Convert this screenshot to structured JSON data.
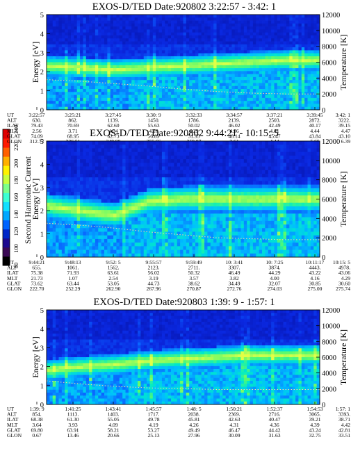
{
  "colorbar": {
    "label": "Second Harmonic Current",
    "ticks": [
      "80",
      "100",
      "120",
      "140",
      "160",
      "180",
      "200",
      "220",
      "240"
    ],
    "colors": [
      "#000000",
      "#3b0a55",
      "#1d0a8f",
      "#0026c8",
      "#0063ff",
      "#00a8ff",
      "#10e0ff",
      "#3cffd4",
      "#7cff8a",
      "#c8ff3c",
      "#fff200",
      "#ffb000",
      "#ff6000",
      "#ff1a00",
      "#e00000"
    ]
  },
  "chart_data": [
    {
      "type": "heatmap",
      "title": "EXOS-D/TED   Date:920802  3:22:57 - 3:42: 1",
      "ylabel": "Energy [eV]",
      "y2label": "Temperature [K]",
      "ylim": [
        0,
        5
      ],
      "y2lim": [
        0,
        12000
      ],
      "yticks": [
        "0",
        "1",
        "2",
        "3",
        "4",
        "5"
      ],
      "y2ticks": [
        "0",
        "2000",
        "4000",
        "6000",
        "8000",
        "10000",
        "12000"
      ],
      "band_energy_eV": [
        2.3,
        2.2,
        2.1,
        2.2,
        2.3,
        2.4,
        2.5,
        2.6,
        2.6
      ],
      "temperature_K": [
        3800,
        3600,
        3300,
        3000,
        2600,
        2300,
        2100,
        2000,
        2000
      ],
      "table": {
        "labels": [
          "UT",
          "ALT",
          "ILAT",
          "MLT",
          "GLAT",
          "GLON"
        ],
        "columns": [
          [
            "3:22:57",
            "630.",
            "79.43",
            "2.56",
            "74.09",
            "312.77"
          ],
          [
            "3:25:21",
            "862.",
            "70.69",
            "3.71",
            "68.95",
            "336.51"
          ],
          [
            "3:27:45",
            "1139.",
            "62.60",
            "4.04",
            "62.73",
            "348.80"
          ],
          [
            "3:30: 9",
            "1450.",
            "55.63",
            "4.20",
            "56.89",
            "355.66"
          ],
          [
            "3:32:33",
            "1786.",
            "50.02",
            "4.29",
            "51.95",
            "359.87"
          ],
          [
            "3:34:57",
            "2139.",
            "46.02",
            "4.36",
            "48.14",
            "2.61"
          ],
          [
            "3:37:21",
            "2503.",
            "42.49",
            "4.41",
            "45.47",
            "4.44"
          ],
          [
            "3:39:45",
            "2872.",
            "40.17",
            "4.44",
            "43.84",
            "5.65"
          ],
          [
            "3:42: 1",
            "3222.",
            "39.15",
            "4.47",
            "43.10",
            "6.39"
          ]
        ]
      }
    },
    {
      "type": "heatmap",
      "title": "EXOS-D/TED   Date:920802  9:44:21 - 10:15: 5",
      "ylabel": "Energy [eV]",
      "y2label": "Temperature [K]",
      "ylim": [
        0,
        5
      ],
      "y2lim": [
        0,
        12000
      ],
      "yticks": [
        "0",
        "1",
        "2",
        "3",
        "4",
        "5"
      ],
      "y2ticks": [
        "0",
        "2000",
        "4000",
        "6000",
        "8000",
        "10000",
        "12000"
      ],
      "band_energy_eV": [
        2.2,
        2.0,
        1.8,
        2.4,
        2.5,
        2.5,
        2.5,
        2.5,
        2.5
      ],
      "temperature_K": [
        3500,
        3300,
        3000,
        2600,
        2300,
        2000,
        1900,
        1800,
        1800
      ],
      "table": {
        "labels": [
          "UT",
          "ALT",
          "ILAT",
          "MLT",
          "GLAT",
          "GLON"
        ],
        "columns": [
          [
            "9:44:21",
            "655.",
            "75.38",
            "21.73",
            "73.62",
            "222.70"
          ],
          [
            "9:48:13",
            "1061.",
            "71.93",
            "1.07",
            "63.44",
            "252.29"
          ],
          [
            "9:52: 5",
            "1562.",
            "63.61",
            "2.54",
            "53.05",
            "262.90"
          ],
          [
            "9:55:57",
            "2123.",
            "56.02",
            "3.19",
            "44.73",
            "267.96"
          ],
          [
            "9:59:49",
            "2711.",
            "50.32",
            "3.57",
            "38.62",
            "270.87"
          ],
          [
            "10: 3:41",
            "3307.",
            "46.49",
            "3.82",
            "34.49",
            "272.76"
          ],
          [
            "10: 7:25",
            "3874.",
            "44.29",
            "4.00",
            "32.07",
            "274.03"
          ],
          [
            "10:11:17",
            "4443.",
            "43.22",
            "4.16",
            "30.85",
            "275.00"
          ],
          [
            "10:15: 5",
            "4978.",
            "43.06",
            "4.29",
            "30.60",
            "275.74"
          ]
        ]
      }
    },
    {
      "type": "heatmap",
      "title": "EXOS-D/TED   Date:920803  1:39: 9 - 1:57: 1",
      "ylabel": "Energy [eV]",
      "y2label": "Temperature [K]",
      "ylim": [
        0,
        5
      ],
      "y2lim": [
        0,
        12000
      ],
      "yticks": [
        "0",
        "1",
        "2",
        "3",
        "4",
        "5"
      ],
      "y2ticks": [
        "0",
        "2000",
        "4000",
        "6000",
        "8000",
        "10000",
        "12000"
      ],
      "band_energy_eV": [
        1.8,
        2.0,
        2.1,
        2.3,
        2.4,
        2.5,
        2.6,
        2.6,
        2.6
      ],
      "temperature_K": [
        3000,
        2600,
        2300,
        2100,
        2000,
        1900,
        1900,
        1900,
        1900
      ],
      "table": {
        "labels": [
          "UT",
          "ALT",
          "ILAT",
          "MLT",
          "GLAT",
          "GLON"
        ],
        "columns": [
          [
            "1:39: 9",
            "854.",
            "68.38",
            "3.64",
            "69.80",
            "0.67"
          ],
          [
            "1:41:25",
            "1113.",
            "61.30",
            "3.93",
            "63.91",
            "13.46"
          ],
          [
            "1:43:41",
            "1403.",
            "55.05",
            "4.09",
            "58.21",
            "20.66"
          ],
          [
            "1:45:57",
            "1717.",
            "49.78",
            "4.19",
            "53.27",
            "25.13"
          ],
          [
            "1:48: 5",
            "2038.",
            "45.81",
            "4.26",
            "49.49",
            "27.96"
          ],
          [
            "1:50:21",
            "2369.",
            "42.63",
            "4.31",
            "46.47",
            "30.09"
          ],
          [
            "1:52:37",
            "2716.",
            "40.47",
            "4.36",
            "44.42",
            "31.63"
          ],
          [
            "1:54:53",
            "3065.",
            "39.21",
            "4.39",
            "43.24",
            "32.75"
          ],
          [
            "1:57: 1",
            "3393.",
            "38.71",
            "4.42",
            "42.81",
            "33.51"
          ]
        ]
      }
    }
  ]
}
